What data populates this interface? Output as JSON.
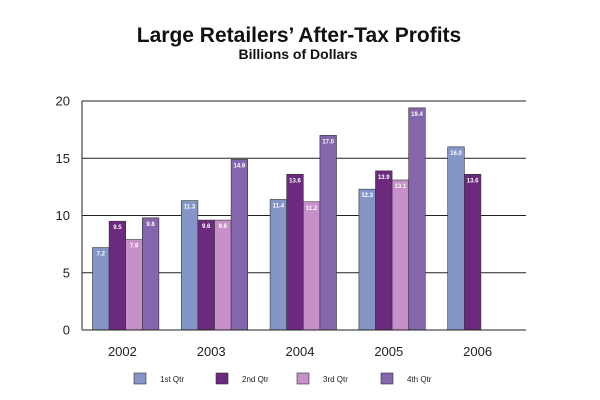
{
  "chart_data": {
    "type": "bar",
    "title": "Large Retailers’ After-Tax Profits",
    "subtitle": "Billions of Dollars",
    "xlabel": "",
    "ylabel": "",
    "ylim": [
      0,
      20
    ],
    "yticks": [
      0,
      5,
      10,
      15,
      20
    ],
    "grid": true,
    "legend_position": "bottom",
    "categories": [
      "2002",
      "2003",
      "2004",
      "2005",
      "2006"
    ],
    "series": [
      {
        "name": "1st Qtr",
        "color": "#8496c8",
        "values": [
          7.2,
          11.3,
          11.4,
          12.3,
          16.0
        ],
        "labels": [
          "7.2",
          "11.3",
          "11.4",
          "12.3",
          "16.0"
        ]
      },
      {
        "name": "2nd Qtr",
        "color": "#6b2a7d",
        "values": [
          9.5,
          9.6,
          13.6,
          13.9,
          13.6
        ],
        "labels": [
          "9.5",
          "9.6",
          "13.6",
          "13.9",
          "13.6"
        ]
      },
      {
        "name": "3rd Qtr",
        "color": "#c890c8",
        "values": [
          7.9,
          9.6,
          11.2,
          13.1,
          null
        ],
        "labels": [
          "7.9",
          "9.6",
          "11.2",
          "13.1",
          null
        ]
      },
      {
        "name": "4th Qtr",
        "color": "#8466ad",
        "values": [
          9.8,
          14.9,
          17.0,
          19.4,
          null
        ],
        "labels": [
          "9.8",
          "14.9",
          "17.0",
          "19.4",
          null
        ]
      }
    ]
  }
}
